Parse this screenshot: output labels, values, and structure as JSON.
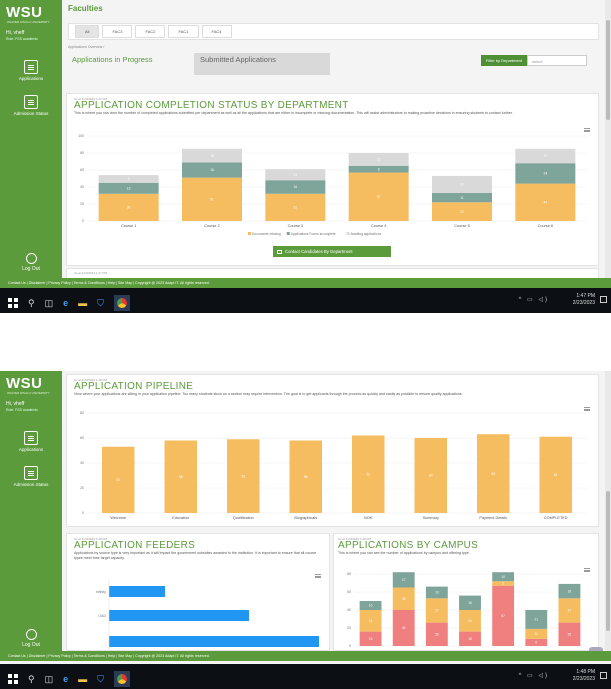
{
  "app": {
    "logo": "WSU",
    "logo_sub": "WALTER SISULU UNIVERSITY",
    "greeting": "Hi, vheff",
    "role": "Role: FSS academic",
    "nav": [
      {
        "label": "Applications",
        "icon": "clipboard-icon"
      },
      {
        "label": "Admission Status",
        "icon": "list-icon"
      }
    ],
    "logout": "Log Out",
    "footer": "Contact Us | Disclaimer | Privacy Policy | Terms & Conditions | Help | Site Map | Copyright @ 2023 Adapt IT. All rights reserved.",
    "accent": "#5b9b3c"
  },
  "shot1": {
    "title": "Faculties",
    "faculties": [
      "All",
      "FAC3",
      "FAC2",
      "FAC1",
      "FAC4"
    ],
    "breadcrumb": "Applications Overview  /",
    "tabs": [
      "Applications in Progress",
      "Submitted Applications"
    ],
    "filter_label": "Filter by Department",
    "filter_placeholder": "select",
    "card": {
      "asof": "As at 2/23/2023 1:47 PM",
      "title": "APPLICATION COMPLETION STATUS BY DEPARTMENT",
      "desc": "This is where you can view the number of completed applications submitted per department as well as all the applications that are either in incomplete or missing documentation. This will assist administrators to making proactive decisions in ensuring students to contact further.",
      "contact_button": "Contact Candidates By Department",
      "next_asof": "As at 2/23/2023 1:47 PM"
    },
    "taskbar": {
      "time": "1:47 PM",
      "date": "2/23/2023"
    }
  },
  "shot2": {
    "pipeline": {
      "asof": "As at 2/23/2023 1:48 PM",
      "title": "APPLICATION PIPELINE",
      "desc": "View where your applications are sitting in your application pipeline. Too many students stuck on a section may require intervention. The goal is to get applicants through the process as quickly and easily as possible to ensure quality applications."
    },
    "feeders": {
      "asof": "As at 2/23/2023 1:48 PM",
      "title": "APPLICATION FEEDERS",
      "desc": "Applications by source type is very important as it will impact the government subsidies awarded to the institution. It is important to ensure that all course types meet their target capacity."
    },
    "campus": {
      "asof": "As at 2/23/2023 1:48 PM",
      "title": "APPLICATIONS BY CAMPUS",
      "desc": "This is where you can see the number of applications by campus and offering type."
    },
    "taskbar": {
      "time": "1:48 PM",
      "date": "2/23/2023"
    }
  },
  "chart_data": [
    {
      "type": "bar",
      "stacked": true,
      "title": "APPLICATION COMPLETION STATUS BY DEPARTMENT",
      "categories": [
        "Course 1",
        "Course 2",
        "Course 3",
        "Course 4",
        "Course 5",
        "Course 6"
      ],
      "series": [
        {
          "name": "Documents missing",
          "color": "#f5bd5f",
          "values": [
            32,
            51,
            32,
            57,
            22,
            44
          ]
        },
        {
          "name": "Applications Forms incomplete",
          "color": "#7fa59a",
          "values": [
            13,
            18,
            16,
            8,
            11,
            24
          ]
        },
        {
          "name": "Awaiting applications",
          "color": "#d9d9d9",
          "values": [
            9,
            16,
            13,
            15,
            20,
            17
          ]
        }
      ],
      "ylim": [
        0,
        100
      ],
      "yticks": [
        0,
        20,
        40,
        60,
        80,
        100
      ],
      "legend": "bottom"
    },
    {
      "type": "bar",
      "title": "APPLICATION PIPELINE",
      "categories": [
        "Welcome",
        "Education",
        "Qualification",
        "Biographicals",
        "NOK",
        "Summary",
        "Payment Details",
        "COMPLETED"
      ],
      "values": [
        53,
        58,
        59,
        58,
        62,
        60,
        63,
        61
      ],
      "color": "#f5bd5f",
      "ylim": [
        0,
        80
      ],
      "yticks": [
        0,
        20,
        40,
        60,
        80
      ]
    },
    {
      "type": "bar",
      "orientation": "horizontal",
      "title": "APPLICATION FEEDERS",
      "categories": [
        "Infinity",
        "OAD",
        ""
      ],
      "values": [
        32,
        80,
        120
      ],
      "color": "#2196f3"
    },
    {
      "type": "bar",
      "stacked": true,
      "title": "APPLICATIONS BY CAMPUS",
      "series": [
        {
          "color": "#f08080",
          "values": [
            16,
            40,
            26,
            16,
            67,
            8,
            26
          ]
        },
        {
          "color": "#f5bd5f",
          "values": [
            24,
            25,
            27,
            24,
            5,
            11,
            27
          ]
        },
        {
          "color": "#7fa59a",
          "values": [
            10,
            17,
            13,
            16,
            10,
            21,
            16
          ]
        }
      ],
      "ylim": [
        0,
        80
      ],
      "yticks": [
        0,
        20,
        40,
        60,
        80
      ]
    }
  ]
}
